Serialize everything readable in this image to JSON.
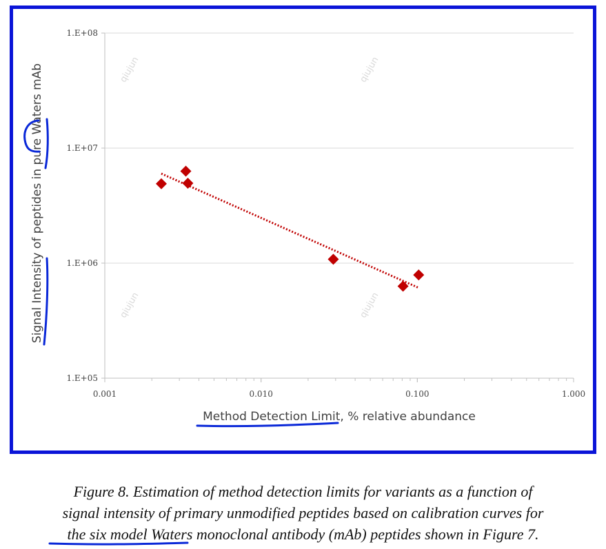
{
  "chart_data": {
    "type": "scatter",
    "title": "",
    "xlabel": "Method Detection Limit, % relative abundance",
    "ylabel": "Signal Intensity of peptides in pure Waters mAb",
    "x_scale": "log",
    "y_scale": "log",
    "xlim": [
      0.001,
      1.0
    ],
    "ylim": [
      100000,
      100000000
    ],
    "x_ticks": [
      0.001,
      0.01,
      0.1,
      1.0
    ],
    "x_tick_labels": [
      "0.001",
      "0.010",
      "0.100",
      "1.000"
    ],
    "y_ticks": [
      100000,
      1000000,
      10000000,
      100000000
    ],
    "y_tick_labels": [
      "1.E+05",
      "1.E+06",
      "1.E+07",
      "1.E+08"
    ],
    "grid": "horizontal",
    "legend": "none",
    "series": [
      {
        "x": [
          0.0023,
          0.0033,
          0.0034,
          0.029,
          0.081,
          0.102
        ],
        "y": [
          4900000,
          6300000,
          4950000,
          1080000,
          630000,
          790000
        ],
        "color": "#c00000",
        "marker": "diamond"
      }
    ],
    "trendline": {
      "x": [
        0.0023,
        0.102
      ],
      "y": [
        6000000,
        610000
      ],
      "color": "#c00000",
      "style": "dotted"
    }
  },
  "watermark": "qiujun",
  "caption": {
    "lines": [
      "Figure 8.  Estimation of method detection limits for variants as a function of",
      "signal intensity of primary unmodified peptides based on calibration curves for",
      "the six model Waters monoclonal antibody (mAb) peptides shown in Figure 7."
    ]
  },
  "colors": {
    "frame_border": "#0a14d8",
    "ink_annotation": "#0a28d8",
    "marker": "#c00000",
    "gridline": "#d9d9d9"
  }
}
